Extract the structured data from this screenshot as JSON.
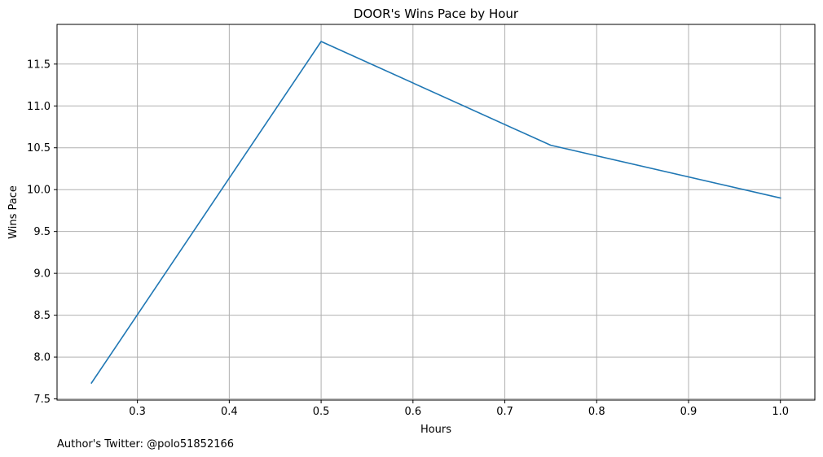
{
  "chart_data": {
    "type": "line",
    "title": "DOOR's Wins Pace by Hour",
    "xlabel": "Hours",
    "ylabel": "Wins Pace",
    "x": [
      0.25,
      0.5,
      0.75,
      1.0
    ],
    "series": [
      {
        "values": [
          7.69,
          11.77,
          10.53,
          9.9
        ]
      }
    ],
    "xlim": [
      0.2125,
      1.0375
    ],
    "ylim": [
      7.486,
      11.974
    ],
    "xticks": [
      0.3,
      0.4,
      0.5,
      0.6,
      0.7,
      0.8,
      0.9,
      1.0
    ],
    "xtick_labels": [
      "0.3",
      "0.4",
      "0.5",
      "0.6",
      "0.7",
      "0.8",
      "0.9",
      "1.0"
    ],
    "yticks": [
      7.5,
      8.0,
      8.5,
      9.0,
      9.5,
      10.0,
      10.5,
      11.0,
      11.5
    ],
    "ytick_labels": [
      "7.5",
      "8.0",
      "8.5",
      "9.0",
      "9.5",
      "10.0",
      "10.5",
      "11.0",
      "11.5"
    ],
    "grid": true,
    "line_color": "#1f77b4",
    "grid_color": "#b0b0b0"
  },
  "footer": {
    "text": "Author's Twitter: @polo51852166"
  }
}
